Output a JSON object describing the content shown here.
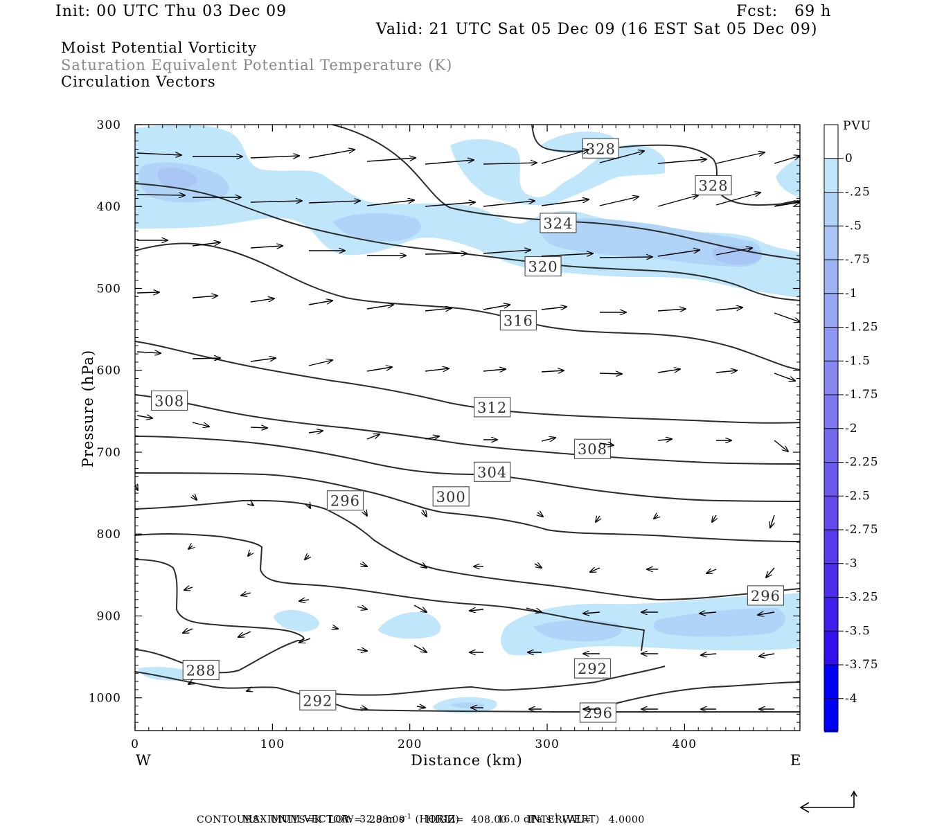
{
  "header": {
    "init": "Init: 00 UTC Thu 03 Dec 09",
    "fcst": "Fcst:   69 h",
    "valid": "Valid: 21 UTC Sat 05 Dec 09 (16 EST Sat 05 Dec 09)",
    "field1": "Moist Potential Vorticity",
    "field2": "Saturation Equivalent Potential Temperature (K)",
    "field3": "Circulation Vectors"
  },
  "footer": {
    "max_vector_label": "MAXIMUM VECTOR:",
    "horiz_value": "32.9 m s",
    "horiz_exp": "-1",
    "horiz_tag": "(HORIZ)",
    "vert_value": "16.0 dPa s",
    "vert_exp": "-1",
    "vert_tag": "(VERT)",
    "contours": "CONTOURS:  UNITS=K  LOW=  288.00      HIGH=  408.00      INTERVAL=     4.0000"
  },
  "colors": {
    "contour": "#2b2b2b",
    "arrow": "#000000",
    "frame": "#000000"
  },
  "chart_data": {
    "type": "cross-section",
    "xlabel": "Distance (km)",
    "ylabel": "Pressure (hPa)",
    "xlim": [
      0,
      484
    ],
    "ylim": [
      1040,
      300
    ],
    "x_ticks": [
      "0",
      "100",
      "200",
      "300",
      "400"
    ],
    "x_tick_values": [
      0,
      100,
      200,
      300,
      400
    ],
    "y_ticks": [
      "300",
      "400",
      "500",
      "600",
      "700",
      "800",
      "900",
      "1000"
    ],
    "y_tick_values": [
      300,
      400,
      500,
      600,
      700,
      800,
      900,
      1000
    ],
    "left_label": "W",
    "right_label": "E",
    "colorbar": {
      "title": "PVU",
      "labels": [
        "0",
        "-.25",
        "-.5",
        "-.75",
        "-1",
        "-1.25",
        "-1.5",
        "-1.75",
        "-2",
        "-2.25",
        "-2.5",
        "-2.75",
        "-3",
        "-3.25",
        "-3.5",
        "-3.75",
        "-4"
      ],
      "colors": [
        "#ffffff",
        "#bfe6fb",
        "#b0d4f8",
        "#a8c5f6",
        "#9fb4f4",
        "#97a6f3",
        "#8e97f1",
        "#8688f0",
        "#7d78ef",
        "#7469ee",
        "#6b5aed",
        "#6249ec",
        "#583aeb",
        "#4d2beb",
        "#421ceb",
        "#350eeb",
        "#0000ff"
      ]
    },
    "contour_labels": [
      {
        "text": "328",
        "x": 339,
        "p": 329
      },
      {
        "text": "328",
        "x": 421,
        "p": 374
      },
      {
        "text": "324",
        "x": 308,
        "p": 420
      },
      {
        "text": "320",
        "x": 297,
        "p": 473
      },
      {
        "text": "316",
        "x": 279,
        "p": 539
      },
      {
        "text": "312",
        "x": 260,
        "p": 645
      },
      {
        "text": "308",
        "x": 25,
        "p": 637
      },
      {
        "text": "308",
        "x": 333,
        "p": 696
      },
      {
        "text": "304",
        "x": 260,
        "p": 724
      },
      {
        "text": "300",
        "x": 230,
        "p": 754
      },
      {
        "text": "296",
        "x": 153,
        "p": 759
      },
      {
        "text": "296",
        "x": 459,
        "p": 875
      },
      {
        "text": "292",
        "x": 333,
        "p": 964
      },
      {
        "text": "292",
        "x": 133,
        "p": 1003
      },
      {
        "text": "296",
        "x": 337,
        "p": 1018
      },
      {
        "text": "288",
        "x": 48,
        "p": 966
      }
    ]
  }
}
